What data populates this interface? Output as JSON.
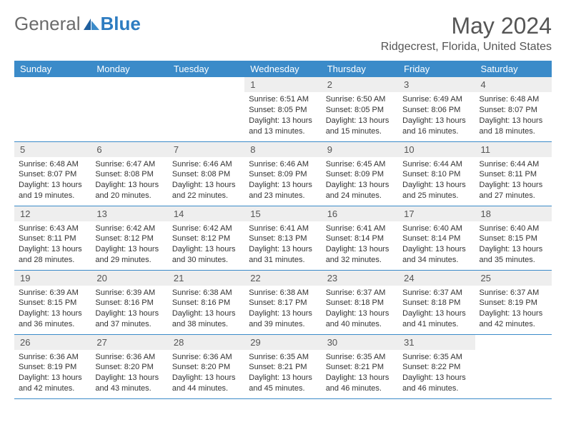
{
  "brand": {
    "part1": "General",
    "part2": "Blue",
    "brand_gray": "#6b6b6b",
    "brand_blue": "#2d7cc1"
  },
  "title": "May 2024",
  "location": "Ridgecrest, Florida, United States",
  "header_bg": "#3b8bc9",
  "daynum_bg": "#eeeeee",
  "days": [
    "Sunday",
    "Monday",
    "Tuesday",
    "Wednesday",
    "Thursday",
    "Friday",
    "Saturday"
  ],
  "weeks": [
    [
      {
        "n": "",
        "empty": true
      },
      {
        "n": "",
        "empty": true
      },
      {
        "n": "",
        "empty": true
      },
      {
        "n": "1",
        "sr": "6:51 AM",
        "ss": "8:05 PM",
        "dl": "13 hours and 13 minutes."
      },
      {
        "n": "2",
        "sr": "6:50 AM",
        "ss": "8:05 PM",
        "dl": "13 hours and 15 minutes."
      },
      {
        "n": "3",
        "sr": "6:49 AM",
        "ss": "8:06 PM",
        "dl": "13 hours and 16 minutes."
      },
      {
        "n": "4",
        "sr": "6:48 AM",
        "ss": "8:07 PM",
        "dl": "13 hours and 18 minutes."
      }
    ],
    [
      {
        "n": "5",
        "sr": "6:48 AM",
        "ss": "8:07 PM",
        "dl": "13 hours and 19 minutes."
      },
      {
        "n": "6",
        "sr": "6:47 AM",
        "ss": "8:08 PM",
        "dl": "13 hours and 20 minutes."
      },
      {
        "n": "7",
        "sr": "6:46 AM",
        "ss": "8:08 PM",
        "dl": "13 hours and 22 minutes."
      },
      {
        "n": "8",
        "sr": "6:46 AM",
        "ss": "8:09 PM",
        "dl": "13 hours and 23 minutes."
      },
      {
        "n": "9",
        "sr": "6:45 AM",
        "ss": "8:09 PM",
        "dl": "13 hours and 24 minutes."
      },
      {
        "n": "10",
        "sr": "6:44 AM",
        "ss": "8:10 PM",
        "dl": "13 hours and 25 minutes."
      },
      {
        "n": "11",
        "sr": "6:44 AM",
        "ss": "8:11 PM",
        "dl": "13 hours and 27 minutes."
      }
    ],
    [
      {
        "n": "12",
        "sr": "6:43 AM",
        "ss": "8:11 PM",
        "dl": "13 hours and 28 minutes."
      },
      {
        "n": "13",
        "sr": "6:42 AM",
        "ss": "8:12 PM",
        "dl": "13 hours and 29 minutes."
      },
      {
        "n": "14",
        "sr": "6:42 AM",
        "ss": "8:12 PM",
        "dl": "13 hours and 30 minutes."
      },
      {
        "n": "15",
        "sr": "6:41 AM",
        "ss": "8:13 PM",
        "dl": "13 hours and 31 minutes."
      },
      {
        "n": "16",
        "sr": "6:41 AM",
        "ss": "8:14 PM",
        "dl": "13 hours and 32 minutes."
      },
      {
        "n": "17",
        "sr": "6:40 AM",
        "ss": "8:14 PM",
        "dl": "13 hours and 34 minutes."
      },
      {
        "n": "18",
        "sr": "6:40 AM",
        "ss": "8:15 PM",
        "dl": "13 hours and 35 minutes."
      }
    ],
    [
      {
        "n": "19",
        "sr": "6:39 AM",
        "ss": "8:15 PM",
        "dl": "13 hours and 36 minutes."
      },
      {
        "n": "20",
        "sr": "6:39 AM",
        "ss": "8:16 PM",
        "dl": "13 hours and 37 minutes."
      },
      {
        "n": "21",
        "sr": "6:38 AM",
        "ss": "8:16 PM",
        "dl": "13 hours and 38 minutes."
      },
      {
        "n": "22",
        "sr": "6:38 AM",
        "ss": "8:17 PM",
        "dl": "13 hours and 39 minutes."
      },
      {
        "n": "23",
        "sr": "6:37 AM",
        "ss": "8:18 PM",
        "dl": "13 hours and 40 minutes."
      },
      {
        "n": "24",
        "sr": "6:37 AM",
        "ss": "8:18 PM",
        "dl": "13 hours and 41 minutes."
      },
      {
        "n": "25",
        "sr": "6:37 AM",
        "ss": "8:19 PM",
        "dl": "13 hours and 42 minutes."
      }
    ],
    [
      {
        "n": "26",
        "sr": "6:36 AM",
        "ss": "8:19 PM",
        "dl": "13 hours and 42 minutes."
      },
      {
        "n": "27",
        "sr": "6:36 AM",
        "ss": "8:20 PM",
        "dl": "13 hours and 43 minutes."
      },
      {
        "n": "28",
        "sr": "6:36 AM",
        "ss": "8:20 PM",
        "dl": "13 hours and 44 minutes."
      },
      {
        "n": "29",
        "sr": "6:35 AM",
        "ss": "8:21 PM",
        "dl": "13 hours and 45 minutes."
      },
      {
        "n": "30",
        "sr": "6:35 AM",
        "ss": "8:21 PM",
        "dl": "13 hours and 46 minutes."
      },
      {
        "n": "31",
        "sr": "6:35 AM",
        "ss": "8:22 PM",
        "dl": "13 hours and 46 minutes."
      },
      {
        "n": "",
        "empty": true
      }
    ]
  ],
  "labels": {
    "sunrise": "Sunrise: ",
    "sunset": "Sunset: ",
    "daylight": "Daylight: "
  }
}
